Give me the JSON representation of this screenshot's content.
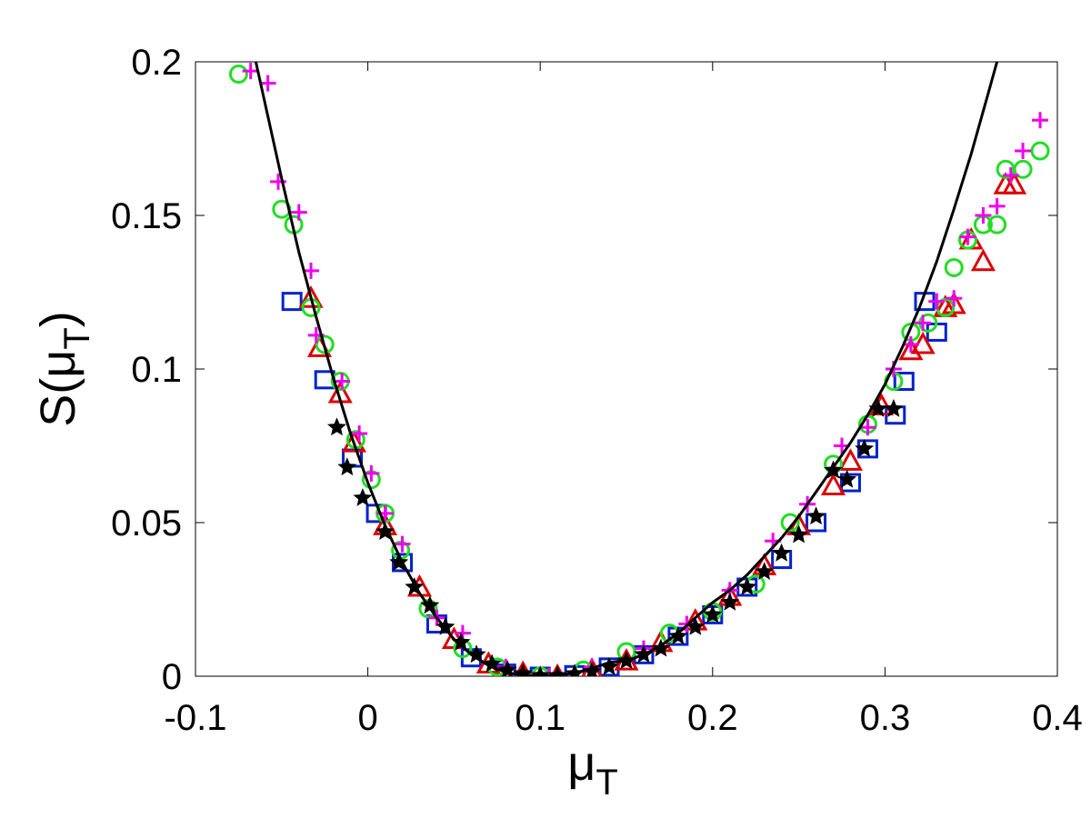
{
  "chart_data": {
    "type": "scatter",
    "xlabel": [
      "μ",
      "T"
    ],
    "ylabel": [
      "S(μ",
      "T",
      ")"
    ],
    "xlim": [
      -0.1,
      0.4
    ],
    "ylim": [
      0,
      0.2
    ],
    "xticks": [
      -0.1,
      0,
      0.1,
      0.2,
      0.3,
      0.4
    ],
    "yticks": [
      0,
      0.05,
      0.1,
      0.15,
      0.2
    ],
    "series": [
      {
        "color": "#0022cc",
        "marker": "square",
        "x": [
          -0.044,
          -0.025,
          -0.009,
          0.005,
          0.02,
          0.04,
          0.06,
          0.08,
          0.1,
          0.12,
          0.14,
          0.16,
          0.18,
          0.2,
          0.22,
          0.24,
          0.26,
          0.28,
          0.29,
          0.306,
          0.311,
          0.33,
          0.323
        ],
        "values": [
          0.122,
          0.0965,
          0.071,
          0.053,
          0.037,
          0.017,
          0.006,
          0.001,
          0.0,
          0.0005,
          0.003,
          0.007,
          0.013,
          0.02,
          0.029,
          0.038,
          0.05,
          0.063,
          0.074,
          0.085,
          0.096,
          0.112,
          0.122
        ]
      },
      {
        "color": "#dd0000",
        "marker": "triangle",
        "x": [
          -0.033,
          -0.028,
          -0.016,
          -0.008,
          0.01,
          0.03,
          0.05,
          0.07,
          0.09,
          0.11,
          0.13,
          0.15,
          0.17,
          0.19,
          0.21,
          0.23,
          0.25,
          0.27,
          0.28,
          0.298,
          0.315,
          0.322,
          0.335,
          0.34,
          0.35,
          0.357,
          0.37,
          0.375
        ],
        "values": [
          0.123,
          0.107,
          0.092,
          0.076,
          0.049,
          0.029,
          0.012,
          0.004,
          0.001,
          0.0,
          0.002,
          0.005,
          0.011,
          0.018,
          0.026,
          0.036,
          0.049,
          0.062,
          0.07,
          0.088,
          0.106,
          0.108,
          0.12,
          0.121,
          0.142,
          0.135,
          0.16,
          0.16
        ]
      },
      {
        "color": "#22dd22",
        "marker": "circle",
        "x": [
          -0.075,
          -0.05,
          -0.043,
          -0.033,
          -0.025,
          -0.016,
          -0.007,
          0.002,
          0.01,
          0.019,
          0.035,
          0.055,
          0.075,
          0.1,
          0.125,
          0.15,
          0.175,
          0.2,
          0.225,
          0.245,
          0.27,
          0.29,
          0.305,
          0.315,
          0.325,
          0.335,
          0.34,
          0.348,
          0.357,
          0.365,
          0.37,
          0.38,
          0.39
        ],
        "values": [
          0.196,
          0.152,
          0.147,
          0.12,
          0.108,
          0.096,
          0.077,
          0.064,
          0.053,
          0.041,
          0.022,
          0.009,
          0.003,
          0.0,
          0.002,
          0.008,
          0.014,
          0.021,
          0.03,
          0.05,
          0.069,
          0.082,
          0.096,
          0.112,
          0.115,
          0.12,
          0.133,
          0.142,
          0.147,
          0.147,
          0.165,
          0.165,
          0.171
        ]
      },
      {
        "color": "#ee00ee",
        "marker": "plus",
        "x": [
          -0.068,
          -0.058,
          -0.052,
          -0.04,
          -0.033,
          -0.03,
          -0.015,
          -0.005,
          0.002,
          0.01,
          0.02,
          0.04,
          0.055,
          0.08,
          0.105,
          0.13,
          0.16,
          0.185,
          0.21,
          0.235,
          0.255,
          0.275,
          0.29,
          0.305,
          0.315,
          0.322,
          0.33,
          0.34,
          0.348,
          0.357,
          0.365,
          0.373,
          0.38,
          0.39
        ],
        "values": [
          0.197,
          0.193,
          0.161,
          0.151,
          0.132,
          0.111,
          0.096,
          0.079,
          0.066,
          0.053,
          0.043,
          0.019,
          0.014,
          0.003,
          0.0,
          0.003,
          0.009,
          0.017,
          0.028,
          0.044,
          0.056,
          0.075,
          0.081,
          0.1,
          0.108,
          0.115,
          0.122,
          0.123,
          0.143,
          0.15,
          0.153,
          0.163,
          0.171,
          0.181
        ]
      },
      {
        "color": "#000000",
        "marker": "star",
        "x": [
          -0.018,
          -0.012,
          -0.003,
          0.01,
          0.018,
          0.027,
          0.036,
          0.045,
          0.054,
          0.063,
          0.072,
          0.081,
          0.09,
          0.1,
          0.11,
          0.12,
          0.13,
          0.14,
          0.15,
          0.16,
          0.17,
          0.18,
          0.19,
          0.2,
          0.21,
          0.22,
          0.23,
          0.24,
          0.25,
          0.26,
          0.27,
          0.278,
          0.288,
          0.296,
          0.305
        ],
        "values": [
          0.081,
          0.068,
          0.058,
          0.047,
          0.037,
          0.029,
          0.023,
          0.016,
          0.011,
          0.007,
          0.004,
          0.002,
          0.0008,
          0.0002,
          0.0002,
          0.0008,
          0.0015,
          0.003,
          0.005,
          0.007,
          0.009,
          0.013,
          0.016,
          0.02,
          0.024,
          0.029,
          0.034,
          0.04,
          0.046,
          0.052,
          0.067,
          0.064,
          0.074,
          0.087,
          0.087
        ]
      },
      {
        "color": "#000000",
        "line": true,
        "x": [
          -0.065,
          -0.05,
          -0.04,
          -0.03,
          -0.02,
          -0.01,
          0,
          0.01,
          0.02,
          0.03,
          0.04,
          0.05,
          0.06,
          0.07,
          0.08,
          0.09,
          0.1,
          0.11,
          0.12,
          0.13,
          0.14,
          0.15,
          0.16,
          0.17,
          0.18,
          0.19,
          0.2,
          0.21,
          0.22,
          0.23,
          0.24,
          0.25,
          0.26,
          0.27,
          0.28,
          0.29,
          0.3,
          0.31,
          0.32,
          0.33,
          0.34,
          0.35,
          0.36,
          0.365
        ],
        "values": [
          0.2,
          0.162,
          0.138,
          0.117,
          0.097,
          0.079,
          0.063,
          0.049,
          0.037,
          0.027,
          0.019,
          0.012,
          0.007,
          0.0035,
          0.0013,
          0.0002,
          0,
          0.0002,
          0.001,
          0.0025,
          0.0045,
          0.005,
          0.007,
          0.01,
          0.014,
          0.019,
          0.024,
          0.028,
          0.033,
          0.039,
          0.045,
          0.052,
          0.06,
          0.068,
          0.076,
          0.085,
          0.095,
          0.107,
          0.12,
          0.135,
          0.152,
          0.17,
          0.19,
          0.2
        ]
      }
    ]
  }
}
